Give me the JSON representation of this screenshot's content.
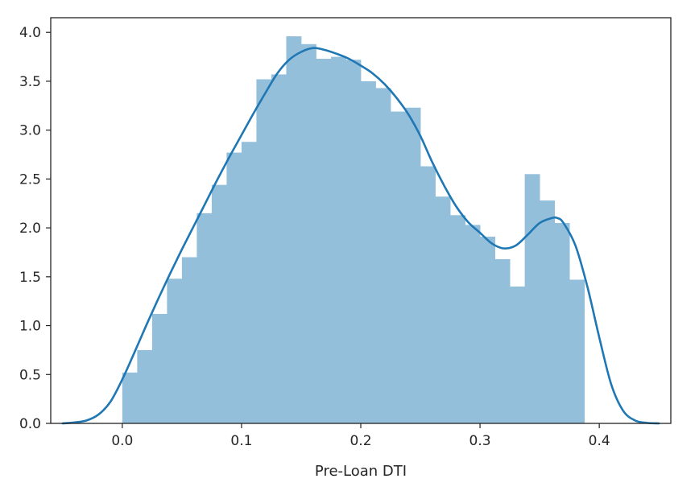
{
  "chart_data": {
    "type": "histogram+kde",
    "xlabel": "Pre-Loan DTI",
    "ylabel": "",
    "title": "",
    "xlim": [
      -0.06,
      0.46
    ],
    "ylim": [
      0,
      4.15
    ],
    "xticks": [
      0.0,
      0.1,
      0.2,
      0.3,
      0.4
    ],
    "xtick_labels": [
      "0.0",
      "0.1",
      "0.2",
      "0.3",
      "0.4"
    ],
    "yticks": [
      0.0,
      0.5,
      1.0,
      1.5,
      2.0,
      2.5,
      3.0,
      3.5,
      4.0
    ],
    "ytick_labels": [
      "0.0",
      "0.5",
      "1.0",
      "1.5",
      "2.0",
      "2.5",
      "3.0",
      "3.5",
      "4.0"
    ],
    "grid": false,
    "legend": "none",
    "bar_color": "#94bfdb",
    "line_color": "#1f77b4",
    "histogram": {
      "bin_width": 0.0125,
      "bin_start": 0.0,
      "densities": [
        0.52,
        0.75,
        1.12,
        1.48,
        1.7,
        2.15,
        2.44,
        2.77,
        2.88,
        3.52,
        3.57,
        3.96,
        3.88,
        3.73,
        3.75,
        3.72,
        3.5,
        3.43,
        3.19,
        3.23,
        2.63,
        2.32,
        2.13,
        2.03,
        1.91,
        1.68,
        1.4,
        2.55,
        2.28,
        2.05,
        1.47
      ]
    },
    "kde": {
      "x": [
        -0.05,
        -0.04,
        -0.03,
        -0.02,
        -0.01,
        0.0,
        0.01,
        0.02,
        0.03,
        0.04,
        0.05,
        0.06,
        0.07,
        0.08,
        0.09,
        0.1,
        0.11,
        0.12,
        0.13,
        0.14,
        0.15,
        0.16,
        0.17,
        0.18,
        0.19,
        0.2,
        0.21,
        0.22,
        0.23,
        0.24,
        0.25,
        0.26,
        0.27,
        0.28,
        0.29,
        0.3,
        0.31,
        0.32,
        0.33,
        0.34,
        0.35,
        0.36,
        0.365,
        0.37,
        0.38,
        0.39,
        0.4,
        0.41,
        0.42,
        0.43,
        0.44,
        0.45
      ],
      "y": [
        0.0,
        0.01,
        0.03,
        0.09,
        0.22,
        0.45,
        0.72,
        1.0,
        1.27,
        1.53,
        1.78,
        2.02,
        2.26,
        2.5,
        2.73,
        2.95,
        3.17,
        3.38,
        3.58,
        3.72,
        3.8,
        3.84,
        3.82,
        3.78,
        3.73,
        3.66,
        3.58,
        3.47,
        3.33,
        3.16,
        2.94,
        2.67,
        2.43,
        2.22,
        2.06,
        1.95,
        1.84,
        1.79,
        1.82,
        1.93,
        2.05,
        2.1,
        2.1,
        2.05,
        1.82,
        1.4,
        0.88,
        0.4,
        0.13,
        0.03,
        0.005,
        0.0
      ]
    }
  }
}
